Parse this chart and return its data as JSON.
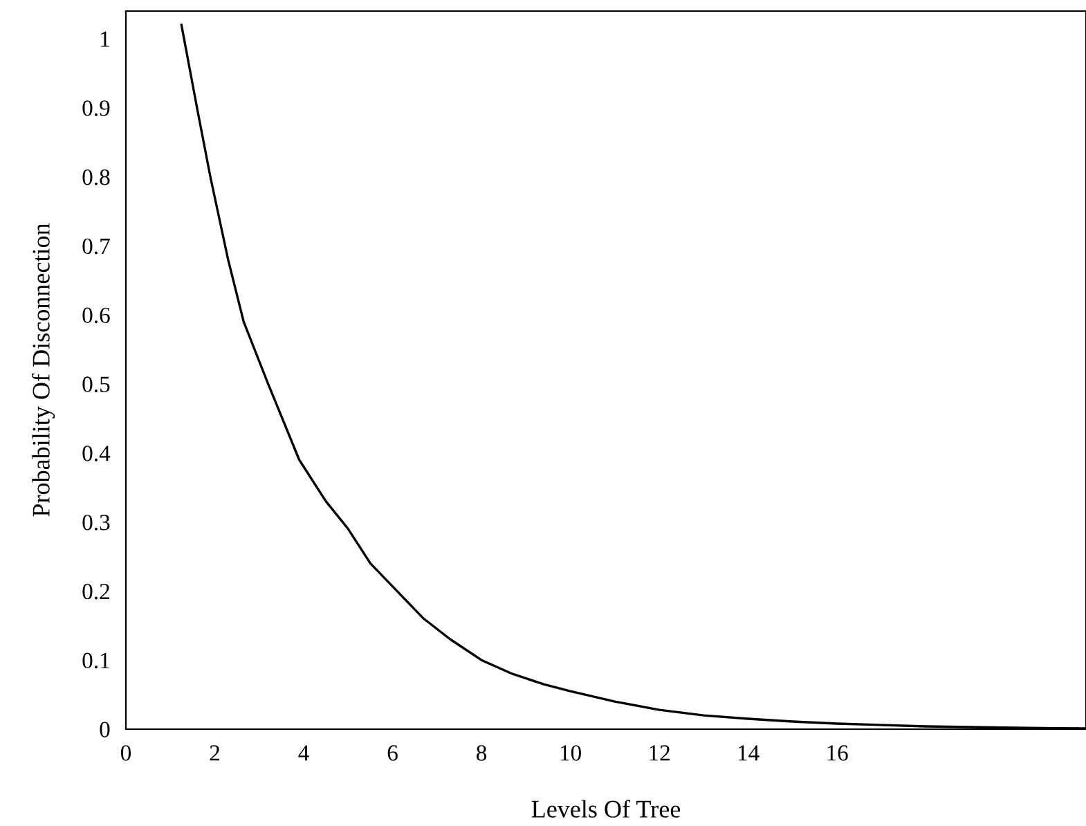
{
  "chart_data": {
    "type": "line",
    "xlabel": "Levels Of Tree",
    "ylabel": "Probability Of Disconnection",
    "x": [
      1.25,
      1.6,
      1.9,
      2.3,
      2.65,
      3.2,
      3.9,
      4.5,
      5.0,
      5.5,
      6.1,
      6.7,
      7.3,
      8.0,
      8.7,
      9.4,
      10.0,
      11.0,
      12.0,
      13.0,
      14.0,
      15.0,
      16.0,
      18.0,
      20.0,
      21.6
    ],
    "series": [
      {
        "color": "#000000",
        "values": [
          1.02,
          0.9,
          0.8,
          0.68,
          0.59,
          0.5,
          0.39,
          0.33,
          0.29,
          0.24,
          0.2,
          0.16,
          0.13,
          0.1,
          0.08,
          0.065,
          0.055,
          0.04,
          0.028,
          0.02,
          0.015,
          0.011,
          0.008,
          0.004,
          0.002,
          0.001
        ]
      }
    ],
    "xlim": [
      0,
      21.6
    ],
    "ylim": [
      0,
      1.04
    ],
    "xticks": [
      0,
      2,
      4,
      6,
      8,
      10,
      12,
      14,
      16
    ],
    "yticks": [
      0,
      0.1,
      0.2,
      0.3,
      0.4,
      0.5,
      0.6,
      0.7,
      0.8,
      0.9,
      1
    ],
    "grid": false,
    "legend": false,
    "marker": "none",
    "line_style": "solid"
  }
}
